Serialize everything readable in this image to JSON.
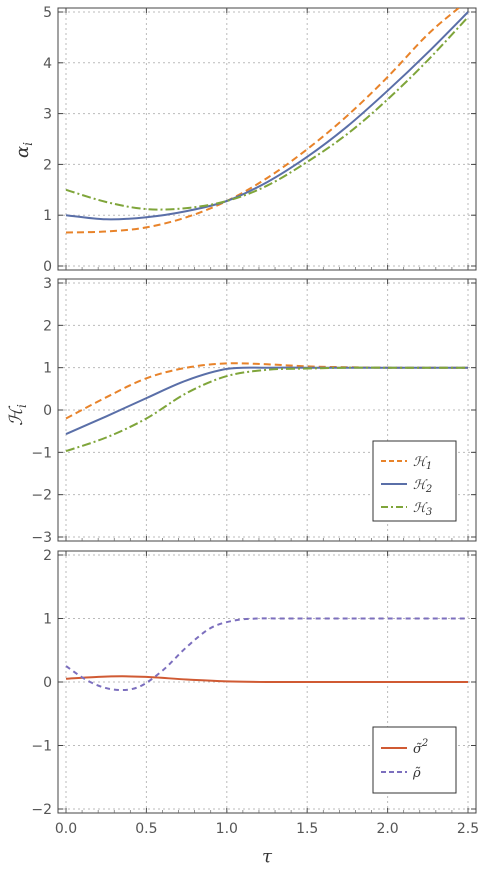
{
  "chart_data": [
    {
      "type": "line",
      "ylabel": "αi",
      "xlim": [
        0,
        2.5
      ],
      "ylim": [
        0,
        5
      ],
      "x_ticks": [
        "0.0",
        "0.5",
        "1.0",
        "1.5",
        "2.0",
        "2.5"
      ],
      "y_ticks": [
        "0",
        "1",
        "2",
        "3",
        "4",
        "5"
      ],
      "grid": true,
      "series": [
        {
          "key": "H1",
          "color": "#E8832A",
          "dash": "7,4",
          "x": [
            0,
            0.25,
            0.5,
            0.75,
            1.0,
            1.25,
            1.5,
            1.75,
            2.0,
            2.25,
            2.45
          ],
          "y": [
            0.66,
            0.68,
            0.76,
            0.96,
            1.28,
            1.73,
            2.3,
            2.96,
            3.72,
            4.56,
            5.1
          ]
        },
        {
          "key": "H2",
          "color": "#5A6FA8",
          "dash": "",
          "x": [
            0,
            0.25,
            0.5,
            0.75,
            1.0,
            1.25,
            1.5,
            1.75,
            2.0,
            2.25,
            2.5
          ],
          "y": [
            1.0,
            0.92,
            0.96,
            1.08,
            1.28,
            1.65,
            2.15,
            2.75,
            3.45,
            4.2,
            5.0
          ]
        },
        {
          "key": "H3",
          "color": "#7FA53A",
          "dash": "9,3,2,3",
          "x": [
            0,
            0.25,
            0.5,
            0.75,
            1.0,
            1.25,
            1.5,
            1.75,
            2.0,
            2.25,
            2.5
          ],
          "y": [
            1.5,
            1.26,
            1.12,
            1.14,
            1.28,
            1.58,
            2.05,
            2.6,
            3.28,
            4.05,
            4.9
          ]
        }
      ]
    },
    {
      "type": "line",
      "ylabel": "ℋi",
      "xlim": [
        0,
        2.5
      ],
      "ylim": [
        -3,
        3
      ],
      "x_ticks": [
        "0.0",
        "0.5",
        "1.0",
        "1.5",
        "2.0",
        "2.5"
      ],
      "y_ticks": [
        "−3",
        "−2",
        "−1",
        "0",
        "1",
        "2",
        "3"
      ],
      "y_tick_values": [
        -3,
        -2,
        -1,
        0,
        1,
        2,
        3
      ],
      "grid": true,
      "legend_position": "bottom-right",
      "series": [
        {
          "key": "H1",
          "name": "ℋ1",
          "color": "#E8832A",
          "dash": "7,4",
          "x": [
            0,
            0.25,
            0.5,
            0.75,
            1.0,
            1.25,
            1.5,
            1.75,
            2.0,
            2.25,
            2.5
          ],
          "y": [
            -0.2,
            0.3,
            0.75,
            1.0,
            1.1,
            1.08,
            1.03,
            1.01,
            1.0,
            1.0,
            1.0
          ]
        },
        {
          "key": "H2",
          "name": "ℋ2",
          "color": "#5A6FA8",
          "dash": "",
          "x": [
            0,
            0.25,
            0.5,
            0.75,
            1.0,
            1.25,
            1.5,
            1.75,
            2.0,
            2.25,
            2.5
          ],
          "y": [
            -0.57,
            -0.15,
            0.28,
            0.7,
            0.97,
            1.0,
            1.0,
            1.0,
            1.0,
            1.0,
            1.0
          ]
        },
        {
          "key": "H3",
          "name": "ℋ3",
          "color": "#7FA53A",
          "dash": "9,3,2,3",
          "x": [
            0,
            0.25,
            0.5,
            0.75,
            1.0,
            1.25,
            1.5,
            1.75,
            2.0,
            2.25,
            2.5
          ],
          "y": [
            -0.97,
            -0.65,
            -0.2,
            0.4,
            0.8,
            0.95,
            0.98,
            1.0,
            1.0,
            1.0,
            1.0
          ]
        }
      ]
    },
    {
      "type": "line",
      "xlabel": "τ",
      "xlim": [
        0,
        2.5
      ],
      "ylim": [
        -2,
        2
      ],
      "x_ticks": [
        "0.0",
        "0.5",
        "1.0",
        "1.5",
        "2.0",
        "2.5"
      ],
      "y_ticks": [
        "−2",
        "−1",
        "0",
        "1",
        "2"
      ],
      "y_tick_values": [
        -2,
        -1,
        0,
        1,
        2
      ],
      "grid": true,
      "legend_position": "bottom-right",
      "series": [
        {
          "key": "sigma2",
          "name": "σ̃2",
          "color": "#D05A33",
          "dash": "",
          "x": [
            0,
            0.2,
            0.35,
            0.5,
            0.75,
            1.0,
            1.25,
            1.5,
            2.0,
            2.5
          ],
          "y": [
            0.05,
            0.08,
            0.09,
            0.08,
            0.04,
            0.01,
            0.0,
            0.0,
            0.0,
            0.0
          ]
        },
        {
          "key": "rho",
          "name": "ρ̃",
          "color": "#7C6FBE",
          "dash": "5,4",
          "x": [
            0,
            0.15,
            0.3,
            0.45,
            0.6,
            0.75,
            0.9,
            1.05,
            1.2,
            1.35,
            1.6,
            2.0,
            2.5
          ],
          "y": [
            0.25,
            0.0,
            -0.12,
            -0.08,
            0.18,
            0.55,
            0.85,
            0.97,
            1.0,
            1.0,
            1.0,
            1.0,
            1.0
          ]
        }
      ]
    }
  ]
}
